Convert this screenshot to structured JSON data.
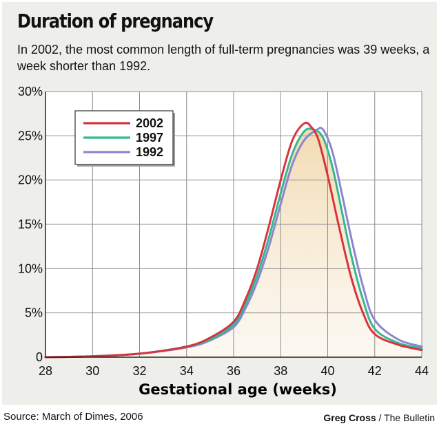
{
  "header": {
    "title": "Duration of pregnancy",
    "subtitle": "In 2002, the most common length of full-term pregnancies was 39 weeks, a week shorter than 1992."
  },
  "footer": {
    "source": "Source: March of Dimes, 2006",
    "credit_name": "Greg Cross",
    "credit_sep": " / ",
    "credit_org": "The Bulletin"
  },
  "chart_data": {
    "type": "line",
    "title": "Duration of pregnancy",
    "xlabel": "Gestational age (weeks)",
    "ylabel": "",
    "xlim": [
      28,
      44
    ],
    "ylim": [
      0,
      30
    ],
    "xticks": [
      28,
      30,
      32,
      34,
      36,
      38,
      40,
      42,
      44
    ],
    "yticks": [
      0,
      5,
      10,
      15,
      20,
      25,
      30
    ],
    "ytick_labels": [
      "0",
      "5%",
      "10%",
      "15%",
      "20%",
      "25%",
      "30%"
    ],
    "grid": true,
    "legend_position": "top-left",
    "series": [
      {
        "name": "2002",
        "color": "#d9323f",
        "x": [
          28,
          30,
          32,
          34,
          35,
          36,
          36.5,
          37,
          37.5,
          38,
          38.5,
          39,
          39.3,
          39.6,
          40,
          40.5,
          41,
          41.5,
          42,
          43,
          44
        ],
        "y": [
          0,
          0.1,
          0.4,
          1.2,
          2.2,
          4.0,
          6.5,
          10.0,
          14.8,
          20.0,
          24.5,
          26.4,
          26.0,
          24.6,
          20.5,
          14.5,
          9.0,
          5.0,
          2.6,
          1.4,
          0.8
        ]
      },
      {
        "name": "1997",
        "color": "#35b88e",
        "x": [
          28,
          30,
          32,
          34,
          35,
          36,
          36.5,
          37,
          37.5,
          38,
          38.5,
          39,
          39.4,
          39.8,
          40.2,
          40.6,
          41,
          41.5,
          42,
          43,
          44
        ],
        "y": [
          0,
          0.1,
          0.4,
          1.2,
          2.0,
          3.7,
          6.0,
          9.2,
          13.5,
          18.5,
          23.0,
          25.5,
          25.7,
          24.8,
          21.5,
          16.5,
          11.5,
          6.5,
          3.2,
          1.6,
          1.0
        ]
      },
      {
        "name": "1992",
        "color": "#8b86d2",
        "x": [
          28,
          30,
          32,
          34,
          35,
          36,
          36.5,
          37,
          37.5,
          38,
          38.5,
          39,
          39.5,
          39.8,
          40.2,
          40.6,
          41,
          41.5,
          42,
          43,
          44
        ],
        "y": [
          0,
          0.1,
          0.4,
          1.1,
          1.9,
          3.4,
          5.5,
          8.5,
          12.5,
          17.3,
          21.8,
          24.5,
          25.6,
          25.7,
          23.2,
          18.5,
          13.5,
          8.0,
          4.2,
          2.0,
          1.2
        ]
      }
    ]
  }
}
